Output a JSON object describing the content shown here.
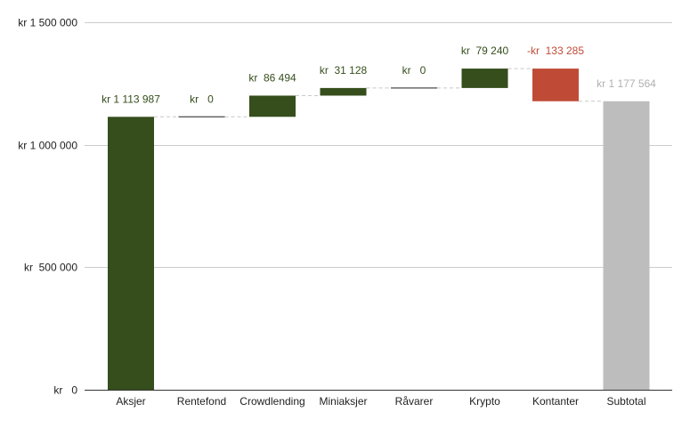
{
  "chart_data": {
    "type": "bar",
    "subtype": "waterfall",
    "title": "",
    "xlabel": "",
    "ylabel": "",
    "ylim": [
      0,
      1500000
    ],
    "grid": true,
    "legend": "none",
    "y_ticks": [
      {
        "value": 0,
        "label": "kr   0"
      },
      {
        "value": 500000,
        "label": "kr  500 000"
      },
      {
        "value": 1000000,
        "label": "kr 1 000 000"
      },
      {
        "value": 1500000,
        "label": "kr 1 500 000"
      }
    ],
    "categories": [
      "Aksjer",
      "Rentefond",
      "Crowdlending",
      "Miniaksjer",
      "Råvarer",
      "Krypto",
      "Kontanter",
      "Subtotal"
    ],
    "values": [
      1113987,
      0,
      86494,
      31128,
      0,
      79240,
      -133285,
      1177564
    ],
    "kinds": [
      "total",
      "delta",
      "delta",
      "delta",
      "delta",
      "delta",
      "delta",
      "total"
    ],
    "data_labels": [
      "kr 1 113 987",
      "kr   0",
      "kr  86 494",
      "kr  31 128",
      "kr   0",
      "kr  79 240",
      "-kr  133 285",
      "kr 1 177 564"
    ],
    "colors": {
      "increase": "#354e1c",
      "decrease": "#bf4b36",
      "total": "#bdbdbd",
      "first_total": "#354e1c",
      "axis_text": "#222222",
      "grid": "#cccccc",
      "connector": "#c8c8c8"
    }
  }
}
